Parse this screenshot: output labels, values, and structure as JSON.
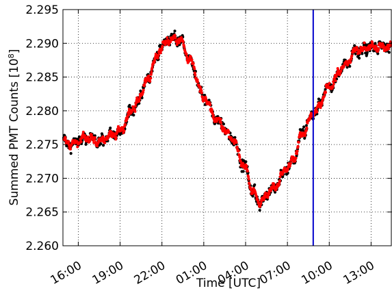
{
  "chart_data": {
    "type": "scatter",
    "xlabel": "Time [UTC]",
    "ylabel": "Summed PMT Counts [10",
    "ylabel_exponent": "8",
    "ylabel_close": "]",
    "x_tick_labels": [
      "16:00",
      "19:00",
      "22:00",
      "01:00",
      "04:00",
      "07:00",
      "10:00",
      "13:00"
    ],
    "x_tick_hours": [
      16,
      19,
      22,
      25,
      28,
      31,
      34,
      37
    ],
    "xlim_hours": [
      14.9,
      38.5
    ],
    "y_ticks": [
      2.26,
      2.265,
      2.27,
      2.275,
      2.28,
      2.285,
      2.29,
      2.295
    ],
    "y_tick_labels": [
      "2.260",
      "2.265",
      "2.270",
      "2.275",
      "2.280",
      "2.285",
      "2.290",
      "2.295"
    ],
    "ylim": [
      2.26,
      2.295
    ],
    "grid": true,
    "vertical_line_hour": 32.85,
    "trend_knots_hours": [
      14.9,
      15.5,
      16.5,
      17.5,
      18.5,
      19.0,
      20.0,
      21.0,
      21.5,
      22.0,
      22.5,
      23.3,
      24.0,
      25.0,
      26.0,
      27.0,
      28.0,
      28.5,
      29.0,
      30.0,
      31.0,
      31.5,
      32.0,
      33.0,
      34.0,
      35.0,
      36.0,
      37.0,
      38.0,
      38.5
    ],
    "trend_knots_values": [
      2.2755,
      2.275,
      2.276,
      2.2755,
      2.2765,
      2.277,
      2.2805,
      2.2845,
      2.2875,
      2.2895,
      2.2905,
      2.2905,
      2.2875,
      2.282,
      2.2785,
      2.276,
      2.2715,
      2.268,
      2.2665,
      2.2685,
      2.2715,
      2.273,
      2.2765,
      2.28,
      2.2835,
      2.2865,
      2.289,
      2.2895,
      2.2895,
      2.2895
    ],
    "series": [
      {
        "color": "#000000",
        "marker": "dot"
      },
      {
        "color": "#ff0000",
        "marker": "dot"
      }
    ],
    "vertical_line_color": "#0000cc"
  }
}
